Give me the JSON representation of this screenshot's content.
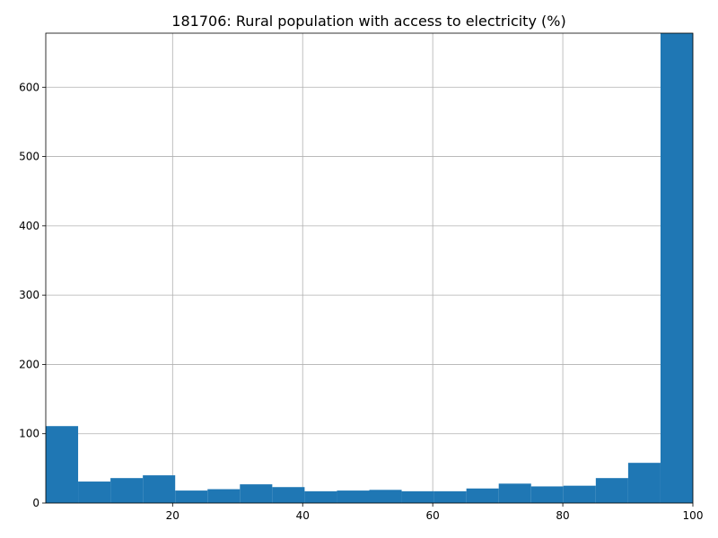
{
  "chart_data": {
    "type": "histogram",
    "title": "181706: Rural population with access to electricity (%)",
    "xlabel": "",
    "ylabel": "",
    "xlim": [
      0.5,
      100
    ],
    "ylim": [
      0,
      678
    ],
    "x_ticks": [
      20,
      40,
      60,
      80,
      100
    ],
    "y_ticks": [
      0,
      100,
      200,
      300,
      400,
      500,
      600
    ],
    "grid": true,
    "bar_color": "#1f77b4",
    "bin_edges": [
      0.5,
      5.475,
      10.45,
      15.425,
      20.4,
      25.375,
      30.35,
      35.325,
      40.3,
      45.275,
      50.25,
      55.225,
      60.2,
      65.175,
      70.15,
      75.125,
      80.1,
      85.075,
      90.05,
      95.025,
      100
    ],
    "counts": [
      111,
      31,
      36,
      40,
      18,
      20,
      27,
      23,
      17,
      18,
      19,
      17,
      17,
      21,
      28,
      24,
      25,
      36,
      58,
      678
    ]
  }
}
